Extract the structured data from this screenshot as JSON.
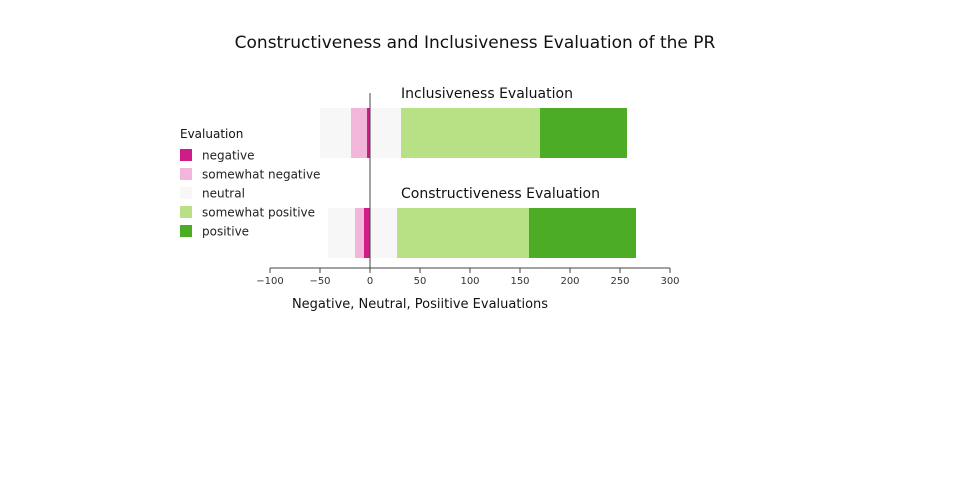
{
  "chart_data": {
    "type": "bar",
    "orientation": "horizontal",
    "barmode": "relative",
    "title": "Constructiveness and Inclusiveness Evaluation of the PR",
    "xlabel": "Negative, Neutral, Posiitive Evaluations",
    "ylabel": "",
    "xlim": [
      -100,
      300
    ],
    "xticks": [
      -100,
      -50,
      0,
      50,
      100,
      150,
      200,
      250,
      300
    ],
    "xtick_labels": [
      "−100",
      "−50",
      "0",
      "50",
      "100",
      "150",
      "200",
      "250",
      "300"
    ],
    "grid": false,
    "legend": {
      "title": "Evaluation",
      "placement": "left",
      "entries": [
        "negative",
        "somewhat negative",
        "neutral",
        "somewhat positive",
        "positive"
      ]
    },
    "colors": {
      "negative": "#d01c8b",
      "somewhat negative": "#f1b6da",
      "neutral": "#f7f7f7",
      "somewhat positive": "#b8e186",
      "positive": "#4dac26"
    },
    "categories": [
      "Inclusiveness Evaluation",
      "Constructiveness Evaluation"
    ],
    "series": [
      {
        "name": "negative",
        "values": [
          -3,
          -6
        ]
      },
      {
        "name": "somewhat negative",
        "values": [
          -16,
          -9
        ]
      },
      {
        "name": "neutral",
        "values": [
          -31,
          -27
        ]
      },
      {
        "name": "neutral",
        "values": [
          31,
          27
        ]
      },
      {
        "name": "somewhat positive",
        "values": [
          139,
          132
        ]
      },
      {
        "name": "positive",
        "values": [
          87,
          107
        ]
      }
    ],
    "annotations": [
      "Inclusiveness Evaluation",
      "Constructiveness Evaluation"
    ]
  }
}
